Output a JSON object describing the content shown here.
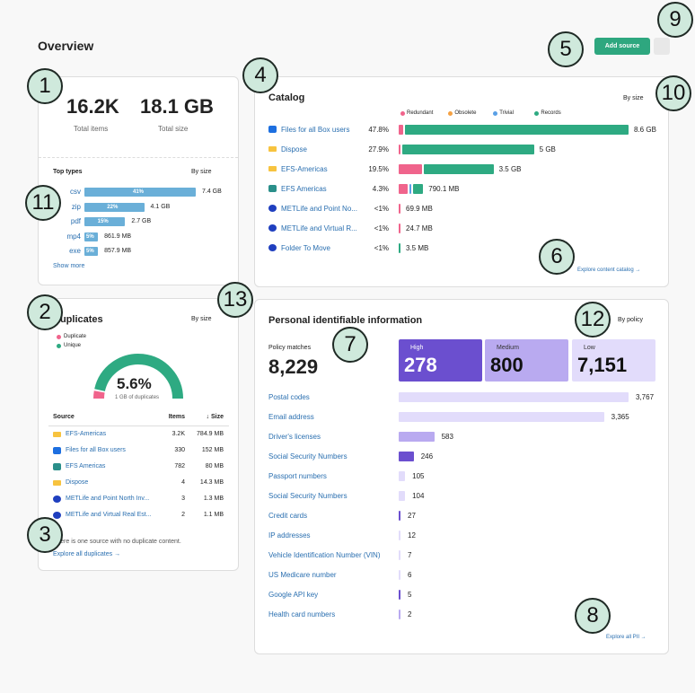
{
  "header": {
    "title": "Overview",
    "add_source": "Add source"
  },
  "summary": {
    "total_items": "16.2K",
    "total_items_label": "Total items",
    "total_size": "18.1 GB",
    "total_size_label": "Total size",
    "top_types": {
      "title": "Top types",
      "sort": "By size",
      "rows": [
        {
          "type": "csv",
          "share": 41,
          "share_label": "41%",
          "size": "7.4 GB"
        },
        {
          "type": "zip",
          "share": 22,
          "share_label": "22%",
          "size": "4.1 GB"
        },
        {
          "type": "pdf",
          "share": 15,
          "share_label": "15%",
          "size": "2.7 GB"
        },
        {
          "type": "mp4",
          "share": 5,
          "share_label": "5%",
          "size": "861.9 MB"
        },
        {
          "type": "exe",
          "share": 5,
          "share_label": "5%",
          "size": "857.9 MB"
        }
      ],
      "show_more": "Show more"
    }
  },
  "catalog": {
    "title": "Catalog",
    "sort": "By size",
    "legend": [
      {
        "name": "Redundant",
        "color": "#f0648c"
      },
      {
        "name": "Obsolete",
        "color": "#f5a142"
      },
      {
        "name": "Trivial",
        "color": "#5aa0e6"
      },
      {
        "name": "Records",
        "color": "#2eaa82"
      }
    ],
    "rows": [
      {
        "name": "Files for all Box users",
        "icon": "box",
        "pct": "47.8%",
        "size": "8.6 GB",
        "segments": [
          1.0,
          0,
          0,
          46.8
        ]
      },
      {
        "name": "Dispose",
        "icon": "folder",
        "pct": "27.9%",
        "size": "5 GB",
        "segments": [
          0.3,
          0,
          0,
          27.6
        ]
      },
      {
        "name": "EFS-Americas",
        "icon": "folder",
        "pct": "19.5%",
        "size": "3.5 GB",
        "segments": [
          4.8,
          0,
          0,
          14.7
        ]
      },
      {
        "name": "EFS Americas",
        "icon": "hex",
        "pct": "4.3%",
        "size": "790.1 MB",
        "segments": [
          1.9,
          0,
          0.3,
          2.1
        ]
      },
      {
        "name": "METLife and Point No...",
        "icon": "met",
        "pct": "<1%",
        "size": "69.9 MB",
        "segments": [
          0.3,
          0,
          0,
          0
        ]
      },
      {
        "name": "METLife and Virtual R...",
        "icon": "met",
        "pct": "<1%",
        "size": "24.7 MB",
        "segments": [
          0.3,
          0,
          0,
          0
        ]
      },
      {
        "name": "Folder To Move",
        "icon": "met",
        "pct": "<1%",
        "size": "3.5 MB",
        "segments": [
          0,
          0,
          0,
          0.3
        ]
      }
    ],
    "link": "Explore content catalog →"
  },
  "duplicates": {
    "title": "Duplicates",
    "sort": "By size",
    "legend": [
      {
        "name": "Duplicate",
        "color": "#f0648c"
      },
      {
        "name": "Unique",
        "color": "#2eaa82"
      }
    ],
    "share": 5.6,
    "share_label": "5.6%",
    "sub": "1 GB of duplicates",
    "columns": [
      "Source",
      "Items",
      "↓ Size"
    ],
    "rows": [
      {
        "name": "EFS-Americas",
        "icon": "folder",
        "items": "3.2K",
        "size": "784.9 MB"
      },
      {
        "name": "Files for all Box users",
        "icon": "box",
        "items": "330",
        "size": "152 MB"
      },
      {
        "name": "EFS Americas",
        "icon": "hex",
        "items": "782",
        "size": "80 MB"
      },
      {
        "name": "Dispose",
        "icon": "folder",
        "items": "4",
        "size": "14.3 MB"
      },
      {
        "name": "METLife and Point North Inv...",
        "icon": "met",
        "items": "3",
        "size": "1.3 MB"
      },
      {
        "name": "METLife and Virtual Real Est...",
        "icon": "met",
        "items": "2",
        "size": "1.1 MB"
      }
    ],
    "note": "There is one source with no duplicate content.",
    "link": "Explore all duplicates →"
  },
  "pii": {
    "title": "Personal identifiable information",
    "sort": "By policy",
    "matches_label": "Policy matches",
    "matches": 8229,
    "matches_label_value": "8,229",
    "cards": [
      {
        "name": "High",
        "count": 278,
        "color": "#6b4fcf"
      },
      {
        "name": "Medium",
        "count": 800,
        "color": "#b9aaf0"
      },
      {
        "name": "Low",
        "count": 7151,
        "count_label": "7,151",
        "color": "#e2dcfb"
      }
    ],
    "rows": [
      {
        "name": "Postal codes",
        "count": 3767,
        "count_label": "3,767",
        "color": "#e2dcfb"
      },
      {
        "name": "Email address",
        "count": 3365,
        "count_label": "3,365",
        "color": "#e2dcfb"
      },
      {
        "name": "Driver's licenses",
        "count": 583,
        "color": "#b9aaf0"
      },
      {
        "name": "Social Security Numbers",
        "count": 246,
        "color": "#6b4fcf"
      },
      {
        "name": "Passport numbers",
        "count": 105,
        "color": "#e2dcfb"
      },
      {
        "name": "Social Security Numbers",
        "count": 104,
        "color": "#e2dcfb"
      },
      {
        "name": "Credit cards",
        "count": 27,
        "color": "#6b4fcf"
      },
      {
        "name": "IP addresses",
        "count": 12,
        "color": "#e2dcfb"
      },
      {
        "name": "Vehicle Identification Number (VIN)",
        "count": 7,
        "color": "#e2dcfb"
      },
      {
        "name": "US Medicare number",
        "count": 6,
        "color": "#e2dcfb"
      },
      {
        "name": "Google API key",
        "count": 5,
        "color": "#6b4fcf"
      },
      {
        "name": "Health card numbers",
        "count": 2,
        "color": "#b9aaf0"
      }
    ],
    "link": "Explore all PII →"
  },
  "callouts": [
    "1",
    "2",
    "3",
    "4",
    "5",
    "6",
    "7",
    "8",
    "9",
    "10",
    "11",
    "12",
    "13"
  ]
}
